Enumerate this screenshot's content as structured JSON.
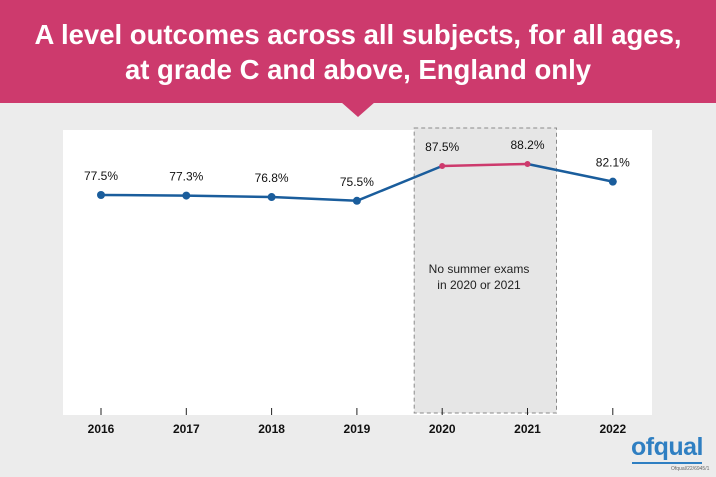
{
  "header": {
    "title_line1": "A level outcomes across all subjects, for all ages,",
    "title_line2": "at grade C and above, England only"
  },
  "chart_data": {
    "type": "line",
    "categories": [
      "2016",
      "2017",
      "2018",
      "2019",
      "2020",
      "2021",
      "2022"
    ],
    "series": [
      {
        "values": [
          77.5,
          77.3,
          76.8,
          75.5,
          87.5,
          88.2,
          82.1
        ]
      }
    ],
    "data_labels": [
      "77.5%",
      "77.3%",
      "76.8%",
      "75.5%",
      "87.5%",
      "88.2%",
      "82.1%"
    ],
    "highlight_range": [
      "2020",
      "2021"
    ],
    "annotation_line1": "No summer exams",
    "annotation_line2": "in 2020 or 2021",
    "colors": {
      "main": "#1a5d9c",
      "highlight": "#cd3a6d",
      "shade": "#e6e6e6"
    },
    "grid": false
  },
  "footer": {
    "brand": "ofqual",
    "reference": "Ofqual/22/6945/1"
  }
}
